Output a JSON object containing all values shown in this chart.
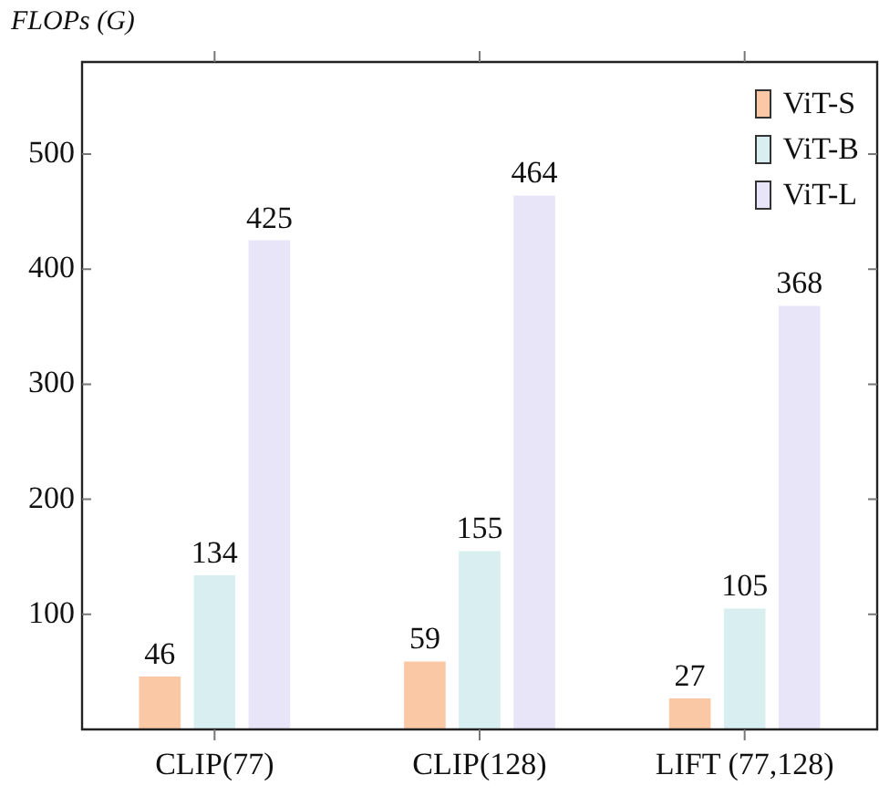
{
  "chart_data": {
    "type": "bar",
    "ylabel": "FLOPs (G)",
    "categories": [
      "CLIP(77)",
      "CLIP(128)",
      "LIFT (77,128)"
    ],
    "series": [
      {
        "name": "ViT-S",
        "color": "#fbc8a6",
        "values": [
          46,
          59,
          27
        ]
      },
      {
        "name": "ViT-B",
        "color": "#d8eef0",
        "values": [
          134,
          155,
          105
        ]
      },
      {
        "name": "ViT-L",
        "color": "#e8e5f8",
        "values": [
          425,
          464,
          368
        ]
      }
    ],
    "ylim": [
      0,
      580
    ],
    "yticks": [
      100,
      200,
      300,
      400,
      500
    ],
    "grid": false,
    "legend": "top right",
    "data_labels": true
  }
}
